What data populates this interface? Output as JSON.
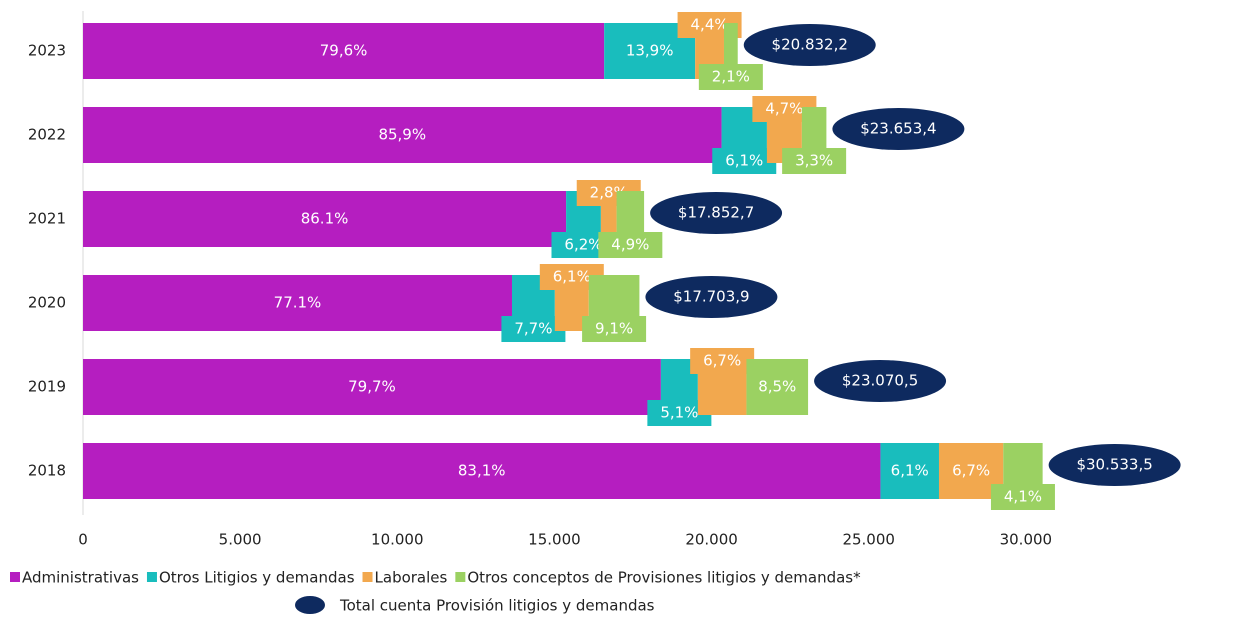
{
  "chart_data": {
    "type": "stacked-hbar",
    "categories": [
      "2023",
      "2022",
      "2021",
      "2020",
      "2019",
      "2018"
    ],
    "series": [
      {
        "name": "Administrativas",
        "color": "#b51ec0",
        "values": [
          79.6,
          85.9,
          86.1,
          77.1,
          79.7,
          83.1
        ],
        "value_labels": [
          "79,6%",
          "85,9%",
          "86.1%",
          "77.1%",
          "79,7%",
          "83,1%"
        ]
      },
      {
        "name": "Otros Litigios y demandas",
        "color": "#19bdbd",
        "values": [
          13.9,
          6.1,
          6.2,
          7.7,
          5.1,
          6.1
        ],
        "value_labels": [
          "13,9%",
          "6,1%",
          "6,2%",
          "7,7%",
          "5,1%",
          "6,1%"
        ]
      },
      {
        "name": "Laborales",
        "color": "#f2a84e",
        "values": [
          4.4,
          4.7,
          2.8,
          6.1,
          6.7,
          6.7
        ],
        "value_labels": [
          "4,4%",
          "4,7%",
          "2,8%",
          "6,1%",
          "6,7%",
          "6,7%"
        ]
      },
      {
        "name": "Otros conceptos de Provisiones litigios y demandas*",
        "color": "#9bd162",
        "values": [
          2.1,
          3.3,
          4.9,
          9.1,
          8.5,
          4.1
        ],
        "value_labels": [
          "2,1%",
          "3,3%",
          "4,9%",
          "9,1%",
          "8,5%",
          "4,1%"
        ]
      }
    ],
    "totals": {
      "name": "Total cuenta Provisión litigios y demandas",
      "color": "#0e2a5f",
      "values": [
        20832.2,
        23653.4,
        17852.7,
        17703.9,
        23070.5,
        30533.5
      ],
      "value_labels": [
        "$20.832,2",
        "$23.653,4",
        "$17.852,7",
        "$17.703,9",
        "$23.070,5",
        "$30.533,5"
      ]
    },
    "xlim": [
      0,
      35000
    ],
    "xticks": [
      0,
      {
        "value": 5000,
        "label": "5.000"
      },
      {
        "value": 10000,
        "label": "10.000"
      },
      {
        "value": 15000,
        "label": "15.000"
      },
      {
        "value": 20000,
        "label": "20.000"
      },
      {
        "value": 25000,
        "label": "25.000"
      },
      {
        "value": 30000,
        "label": "30.000"
      }
    ]
  }
}
